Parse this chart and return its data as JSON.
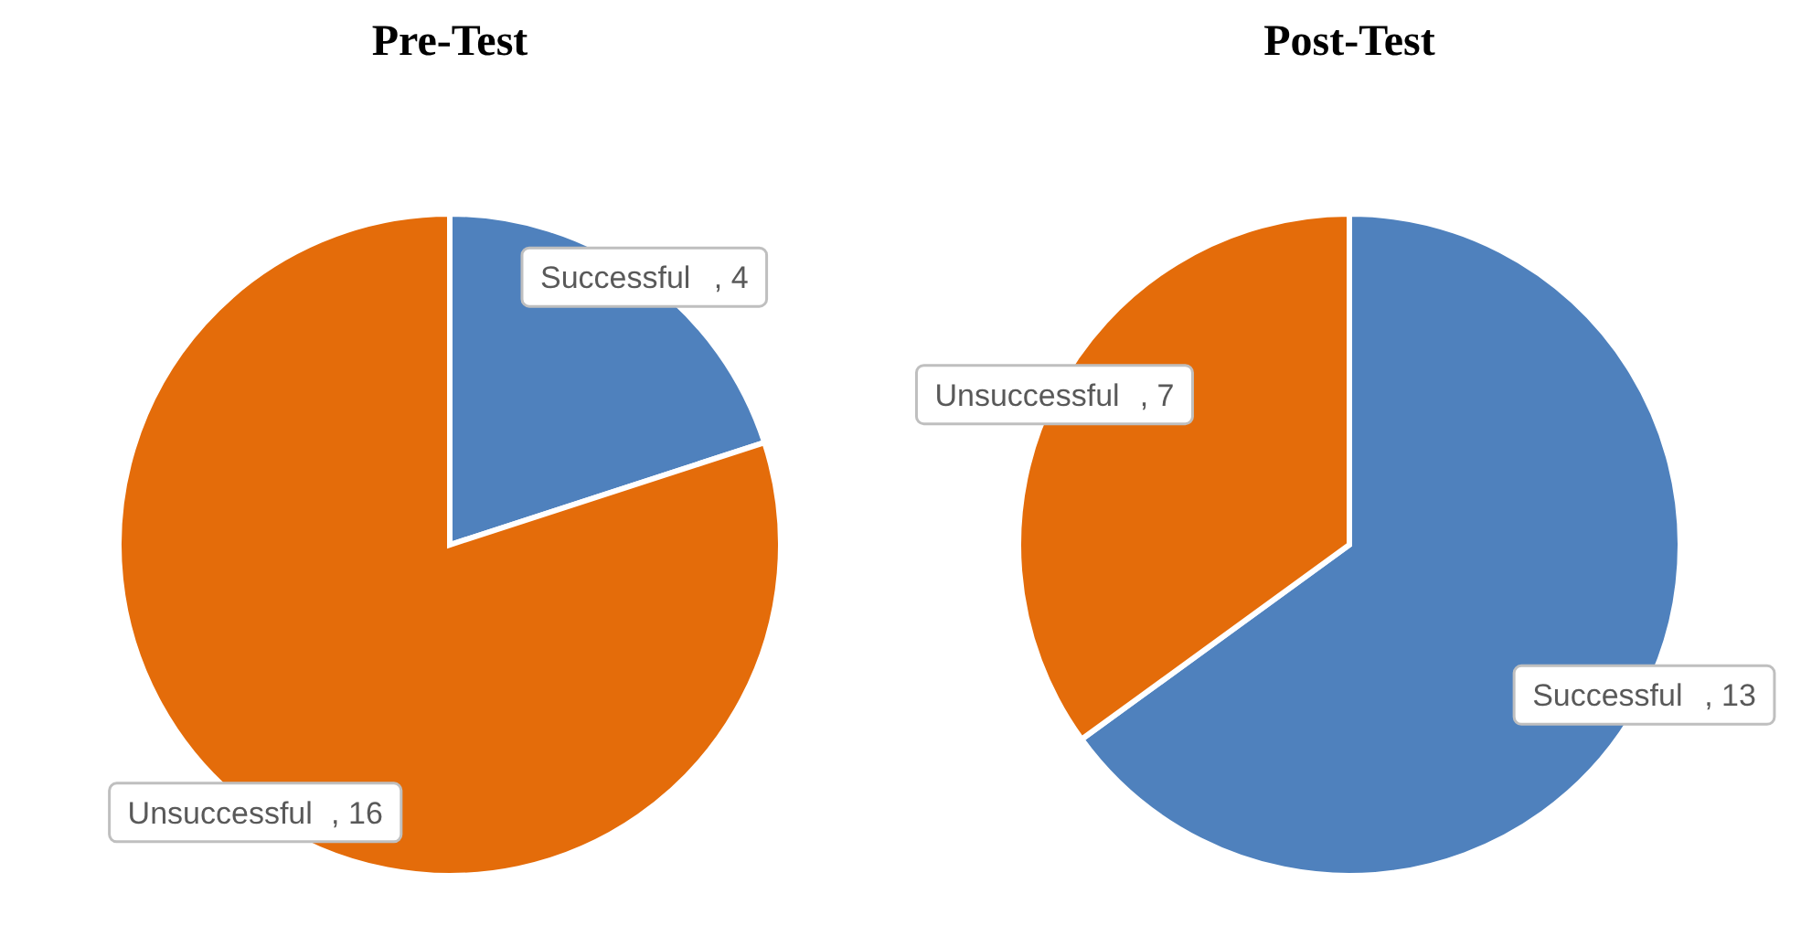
{
  "chart_data": [
    {
      "type": "pie",
      "title": "Pre-Test",
      "categories": [
        "Successful",
        "Unsuccessful"
      ],
      "values": [
        4,
        16
      ],
      "colors": [
        "#4f81bd",
        "#e46c0a"
      ],
      "value_labels": [
        ", 4",
        ", 16"
      ]
    },
    {
      "type": "pie",
      "title": "Post-Test",
      "categories": [
        "Successful",
        "Unsuccessful"
      ],
      "values": [
        13,
        7
      ],
      "colors": [
        "#4f81bd",
        "#e46c0a"
      ],
      "value_labels": [
        ", 13",
        ", 7"
      ]
    }
  ]
}
